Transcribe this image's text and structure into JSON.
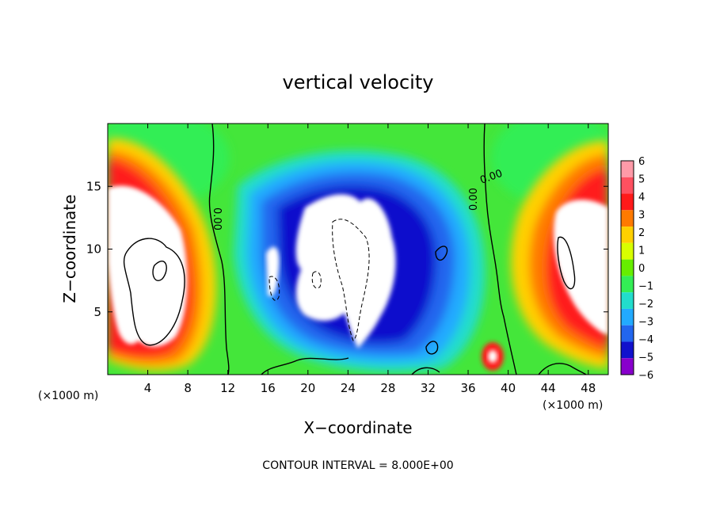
{
  "chart_data": {
    "type": "heatmap",
    "title": "vertical velocity",
    "xlabel": "X−coordinate",
    "ylabel": "Z−coordinate",
    "x_unit_label_left": "(×1000 m)",
    "x_unit_label_right": "(×1000 m)",
    "footer": "CONTOUR INTERVAL = 8.000E+00",
    "xlim": [
      0,
      50
    ],
    "ylim": [
      0,
      20
    ],
    "x_ticks": [
      4,
      8,
      12,
      16,
      20,
      24,
      28,
      32,
      36,
      40,
      44,
      48
    ],
    "y_ticks": [
      5,
      10,
      15
    ],
    "colorbar": {
      "labels": [
        "6",
        "5",
        "4",
        "3",
        "2",
        "1",
        "0",
        "−1",
        "−2",
        "−3",
        "−4",
        "−5",
        "−6"
      ],
      "colors": [
        "#ff9aa8",
        "#ff5060",
        "#ff1a1a",
        "#ff7a00",
        "#ffd000",
        "#d8ff00",
        "#66ee00",
        "#33ee55",
        "#22ddcc",
        "#22aaff",
        "#2266ee",
        "#1111cc",
        "#8800cc"
      ]
    },
    "contour_labels": [
      "0.00",
      "0.00",
      "0.00"
    ],
    "background_color": "#44e63a",
    "saturated_color": "#ffffff"
  }
}
